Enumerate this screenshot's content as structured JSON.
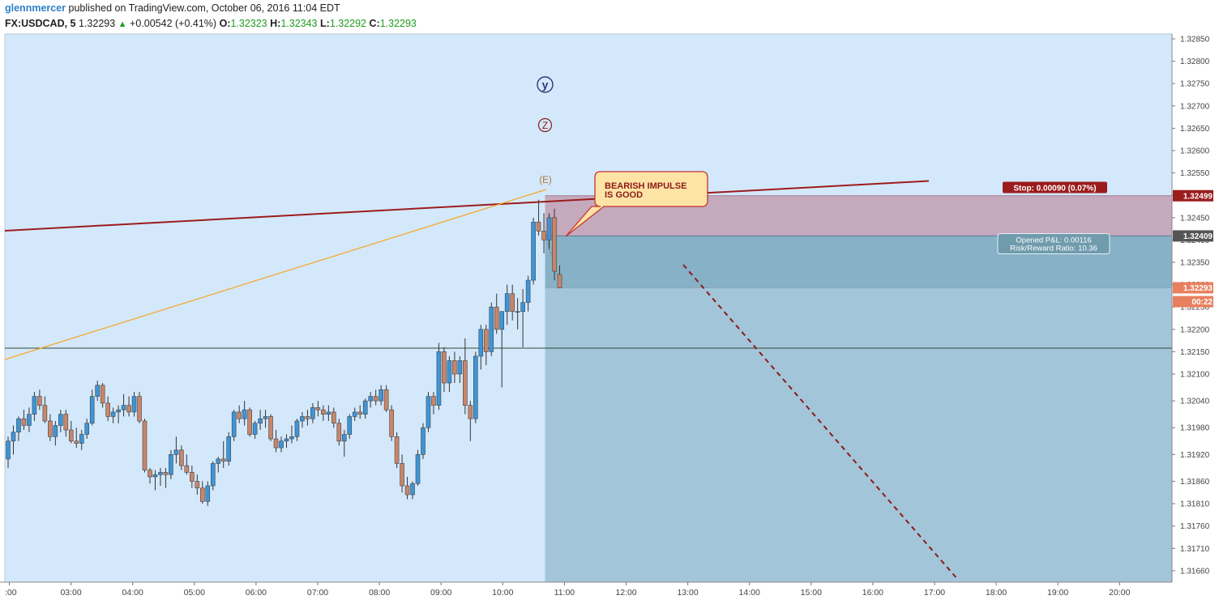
{
  "header": {
    "user": "glennmercer",
    "published_text": " published on TradingView.com, October 06, 2016 11:04 EDT",
    "symbol": "FX:USDCAD, 5",
    "last": "1.32293",
    "change": "+0.00542 (+0.41%)",
    "o_label": "O:",
    "o_value": "1.32323",
    "h_label": "H:",
    "h_value": "1.32343",
    "l_label": "L:",
    "l_value": "1.32292",
    "c_label": "C:",
    "c_value": "1.32293"
  },
  "colors": {
    "plot_bg": "#d4e8fb",
    "up": "#3d95d8",
    "down": "#c8866a",
    "resistance": "#9b1c1c",
    "fib_line": "#f5a623",
    "stop_zone": "#c5a9bd",
    "target_zone": "#a3c5d9",
    "pnl_zone": "#87b1c6"
  },
  "annotations": {
    "wave_y": "y",
    "wave_z": "Z",
    "wave_e": "(E)",
    "callout": [
      "BEARISH IMPULSE",
      "IS GOOD"
    ],
    "stop_label": "Stop: 0.00090 (0.07%)",
    "pnl_line1": "Opened P&L: 0.00116",
    "pnl_line2": "Risk/Reward Ratio: 10.36"
  },
  "price_tags": [
    {
      "text": "1.32499",
      "price": 1.32499,
      "color": "#9b1c1c"
    },
    {
      "text": "1.32409",
      "price": 1.32409,
      "color": "#555555"
    },
    {
      "text": "1.32293",
      "price": 1.32293,
      "color": "#e8805f"
    },
    {
      "text": "00:22",
      "price": 1.32262,
      "color": "#e8805f"
    }
  ],
  "chart_data": {
    "type": "candlestick",
    "x_ticks": [
      ":00",
      "03:00",
      "04:00",
      "05:00",
      "06:00",
      "07:00",
      "08:00",
      "09:00",
      "10:00",
      "11:00",
      "12:00",
      "13:00",
      "14:00",
      "15:00",
      "16:00",
      "17:00",
      "18:00",
      "19:00",
      "20:00"
    ],
    "y_ticks": [
      "1.32850",
      "1.32800",
      "1.32750",
      "1.32700",
      "1.32650",
      "1.32600",
      "1.32550",
      "1.32500",
      "1.32450",
      "1.32400",
      "1.32350",
      "1.32300",
      "1.32250",
      "1.32200",
      "1.32150",
      "1.32100",
      "1.32040",
      "1.31980",
      "1.31920",
      "1.31860",
      "1.31810",
      "1.31760",
      "1.31710",
      "1.31660"
    ],
    "y_range": [
      1.31647,
      1.32866
    ],
    "horizontal_level": 1.32158,
    "position": {
      "entry": 1.32409,
      "stop": 1.32499,
      "target": 1.31647,
      "start_time": "10:45"
    },
    "candles": [
      [
        1.3191,
        1.3196,
        1.3189,
        1.3195
      ],
      [
        1.3195,
        1.31985,
        1.3192,
        1.3197
      ],
      [
        1.3197,
        1.32005,
        1.3195,
        1.32
      ],
      [
        1.32,
        1.3202,
        1.31975,
        1.31985
      ],
      [
        1.31985,
        1.32025,
        1.3197,
        1.3201
      ],
      [
        1.3201,
        1.3206,
        1.31995,
        1.3205
      ],
      [
        1.3205,
        1.32065,
        1.3202,
        1.3203
      ],
      [
        1.3203,
        1.3205,
        1.3199,
        1.31995
      ],
      [
        1.31995,
        1.3201,
        1.3195,
        1.3196
      ],
      [
        1.3196,
        1.31995,
        1.3194,
        1.31985
      ],
      [
        1.31985,
        1.3202,
        1.3197,
        1.3201
      ],
      [
        1.3201,
        1.3202,
        1.3196,
        1.31975
      ],
      [
        1.31975,
        1.31995,
        1.31945,
        1.3195
      ],
      [
        1.3195,
        1.3198,
        1.31935,
        1.31945
      ],
      [
        1.31945,
        1.31975,
        1.3193,
        1.31965
      ],
      [
        1.31965,
        1.32,
        1.31955,
        1.3199
      ],
      [
        1.3199,
        1.32065,
        1.31985,
        1.3205
      ],
      [
        1.3205,
        1.32085,
        1.3204,
        1.32075
      ],
      [
        1.32075,
        1.3208,
        1.32025,
        1.32035
      ],
      [
        1.32035,
        1.3205,
        1.31995,
        1.32005
      ],
      [
        1.32005,
        1.32025,
        1.3199,
        1.32015
      ],
      [
        1.32015,
        1.3203,
        1.3199,
        1.3202
      ],
      [
        1.3202,
        1.32055,
        1.32005,
        1.3203
      ],
      [
        1.3203,
        1.3205,
        1.32005,
        1.32015
      ],
      [
        1.32015,
        1.3206,
        1.32005,
        1.3205
      ],
      [
        1.3205,
        1.3206,
        1.3199,
        1.31995
      ],
      [
        1.31995,
        1.32,
        1.3188,
        1.31885
      ],
      [
        1.31885,
        1.3189,
        1.31855,
        1.3187
      ],
      [
        1.3187,
        1.31885,
        1.3184,
        1.31875
      ],
      [
        1.31875,
        1.3189,
        1.3185,
        1.3188
      ],
      [
        1.3188,
        1.3189,
        1.31845,
        1.31875
      ],
      [
        1.31875,
        1.3193,
        1.31865,
        1.3192
      ],
      [
        1.3192,
        1.3196,
        1.319,
        1.3193
      ],
      [
        1.3193,
        1.3194,
        1.31885,
        1.31895
      ],
      [
        1.31895,
        1.3192,
        1.31875,
        1.3188
      ],
      [
        1.3188,
        1.31895,
        1.31845,
        1.3186
      ],
      [
        1.3186,
        1.31875,
        1.3183,
        1.31845
      ],
      [
        1.31845,
        1.3186,
        1.3181,
        1.31815
      ],
      [
        1.31815,
        1.3186,
        1.31805,
        1.3185
      ],
      [
        1.3185,
        1.31905,
        1.3184,
        1.319
      ],
      [
        1.319,
        1.31915,
        1.3188,
        1.3191
      ],
      [
        1.3191,
        1.3195,
        1.3189,
        1.31905
      ],
      [
        1.31905,
        1.3197,
        1.31895,
        1.3196
      ],
      [
        1.3196,
        1.3202,
        1.3195,
        1.32015
      ],
      [
        1.32015,
        1.3203,
        1.3199,
        1.32
      ],
      [
        1.32,
        1.3204,
        1.31985,
        1.3202
      ],
      [
        1.3202,
        1.32025,
        1.3196,
        1.31965
      ],
      [
        1.31965,
        1.31995,
        1.31955,
        1.3199
      ],
      [
        1.3199,
        1.3202,
        1.31975,
        1.32
      ],
      [
        1.32,
        1.3202,
        1.3198,
        1.32005
      ],
      [
        1.32005,
        1.3201,
        1.3195,
        1.31955
      ],
      [
        1.31955,
        1.31975,
        1.31925,
        1.31935
      ],
      [
        1.31935,
        1.3196,
        1.31925,
        1.3195
      ],
      [
        1.3195,
        1.31965,
        1.31935,
        1.31955
      ],
      [
        1.31955,
        1.31985,
        1.31945,
        1.3196
      ],
      [
        1.3196,
        1.32,
        1.3195,
        1.31995
      ],
      [
        1.31995,
        1.32015,
        1.3198,
        1.32005
      ],
      [
        1.32005,
        1.3202,
        1.31985,
        1.32
      ],
      [
        1.32,
        1.32035,
        1.3199,
        1.32025
      ],
      [
        1.32025,
        1.3204,
        1.32005,
        1.3202
      ],
      [
        1.3202,
        1.3203,
        1.31995,
        1.3201
      ],
      [
        1.3201,
        1.3203,
        1.31995,
        1.32015
      ],
      [
        1.32015,
        1.32025,
        1.3198,
        1.3199
      ],
      [
        1.3199,
        1.32,
        1.3194,
        1.3195
      ],
      [
        1.3195,
        1.31975,
        1.31915,
        1.31965
      ],
      [
        1.31965,
        1.3201,
        1.31955,
        1.32005
      ],
      [
        1.32005,
        1.32025,
        1.31995,
        1.32015
      ],
      [
        1.32015,
        1.3203,
        1.32,
        1.3201
      ],
      [
        1.3201,
        1.32045,
        1.32,
        1.3204
      ],
      [
        1.3204,
        1.3206,
        1.32025,
        1.3205
      ],
      [
        1.3205,
        1.32065,
        1.3203,
        1.3204
      ],
      [
        1.3204,
        1.32075,
        1.3203,
        1.32065
      ],
      [
        1.32065,
        1.32075,
        1.32015,
        1.3202
      ],
      [
        1.3202,
        1.3203,
        1.3195,
        1.3196
      ],
      [
        1.3196,
        1.3197,
        1.3189,
        1.319
      ],
      [
        1.319,
        1.3192,
        1.31835,
        1.3185
      ],
      [
        1.3185,
        1.3187,
        1.3182,
        1.3183
      ],
      [
        1.3183,
        1.3186,
        1.3182,
        1.31855
      ],
      [
        1.31855,
        1.3193,
        1.3185,
        1.3192
      ],
      [
        1.3192,
        1.3199,
        1.3191,
        1.3198
      ],
      [
        1.3198,
        1.3206,
        1.3197,
        1.3205
      ],
      [
        1.3205,
        1.3206,
        1.3201,
        1.3203
      ],
      [
        1.3203,
        1.3217,
        1.3202,
        1.3215
      ],
      [
        1.3215,
        1.3216,
        1.3206,
        1.3208
      ],
      [
        1.3208,
        1.3214,
        1.3206,
        1.3213
      ],
      [
        1.3213,
        1.3215,
        1.3208,
        1.321
      ],
      [
        1.321,
        1.3214,
        1.3208,
        1.3213
      ],
      [
        1.3213,
        1.3218,
        1.3201,
        1.3203
      ],
      [
        1.3203,
        1.3204,
        1.3195,
        1.32
      ],
      [
        1.32,
        1.3215,
        1.3199,
        1.3214
      ],
      [
        1.3214,
        1.3221,
        1.3211,
        1.322
      ],
      [
        1.322,
        1.3221,
        1.3212,
        1.3215
      ],
      [
        1.3215,
        1.3226,
        1.3214,
        1.3225
      ],
      [
        1.3225,
        1.3228,
        1.3219,
        1.322
      ],
      [
        1.322,
        1.3223,
        1.3207,
        1.3224
      ],
      [
        1.3224,
        1.323,
        1.3221,
        1.3228
      ],
      [
        1.3228,
        1.323,
        1.3222,
        1.3224
      ],
      [
        1.3224,
        1.3227,
        1.322,
        1.3224
      ],
      [
        1.3224,
        1.3229,
        1.3216,
        1.3226
      ],
      [
        1.3226,
        1.3232,
        1.3224,
        1.3231
      ],
      [
        1.3231,
        1.3245,
        1.323,
        1.3244
      ],
      [
        1.3244,
        1.3249,
        1.3241,
        1.3242
      ],
      [
        1.3242,
        1.3246,
        1.3237,
        1.324
      ],
      [
        1.324,
        1.3246,
        1.3238,
        1.3245
      ],
      [
        1.3245,
        1.3247,
        1.3231,
        1.3233
      ],
      [
        1.32323,
        1.32343,
        1.32292,
        1.32293
      ]
    ]
  }
}
